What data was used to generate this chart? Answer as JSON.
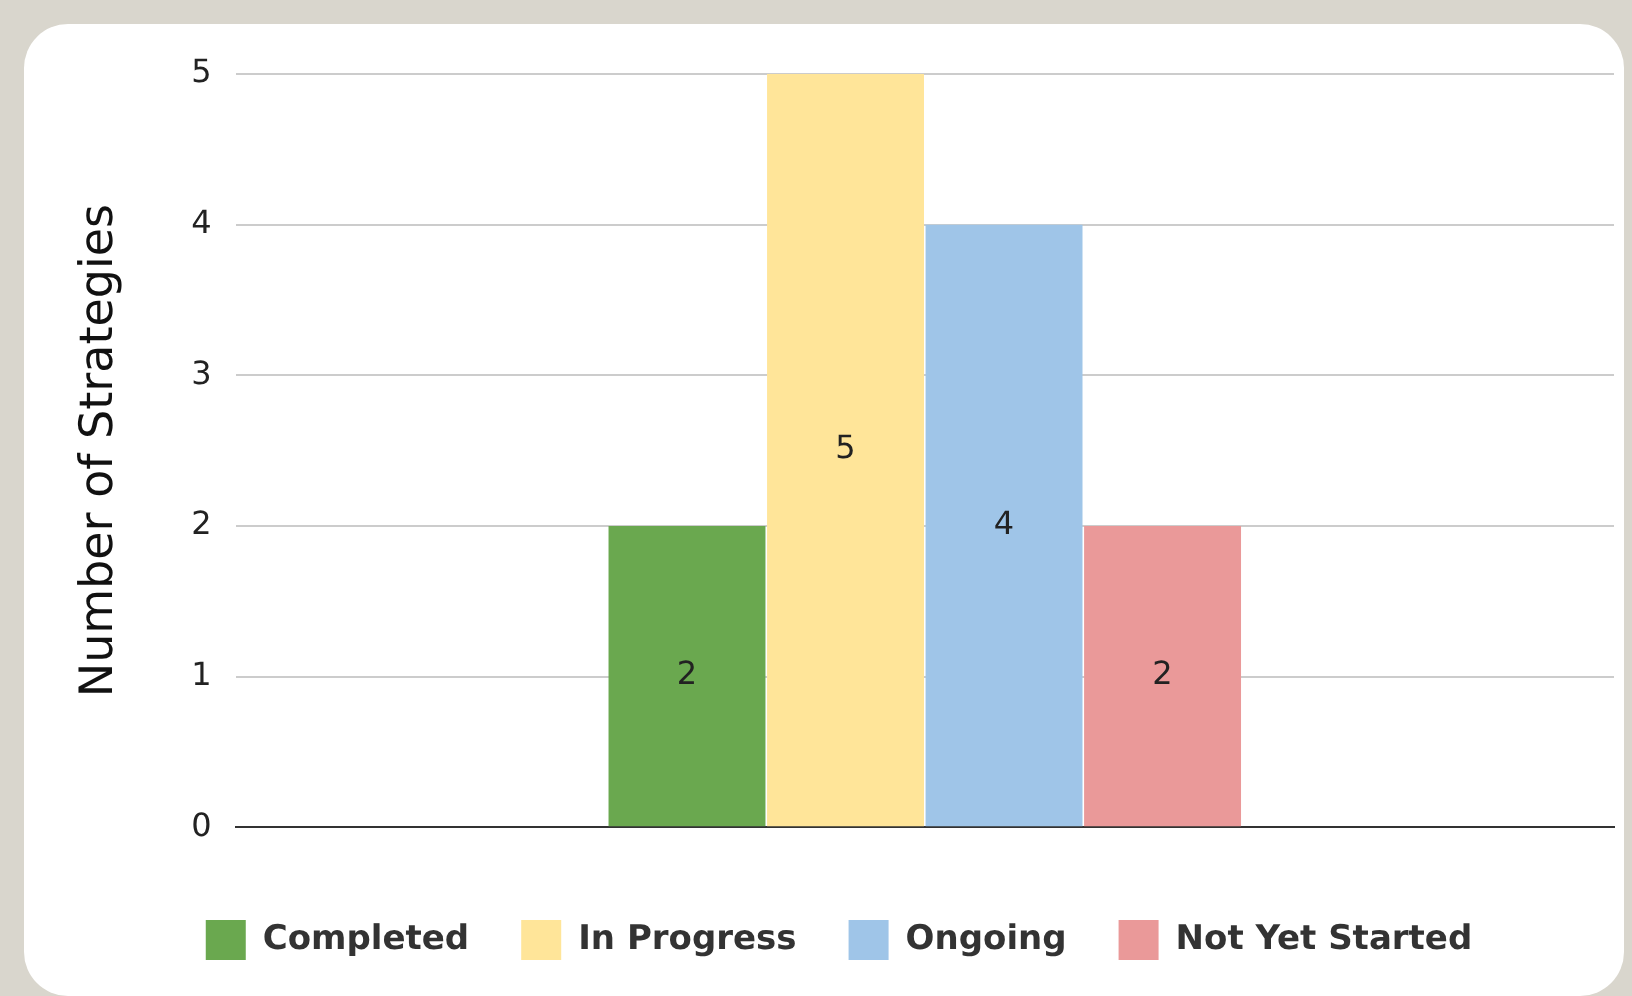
{
  "chart_data": {
    "type": "bar",
    "ylabel": "Number of Strategies",
    "categories": [
      null
    ],
    "series": [
      {
        "name": "Completed",
        "color": "#6aa84f",
        "values": [
          2
        ]
      },
      {
        "name": "In Progress",
        "color": "#ffe599",
        "values": [
          5
        ]
      },
      {
        "name": "Ongoing",
        "color": "#9fc5e8",
        "values": [
          4
        ]
      },
      {
        "name": "Not Yet Started",
        "color": "#ea9999",
        "values": [
          2
        ]
      }
    ],
    "ylim": [
      0,
      5
    ],
    "yticks": [
      0,
      1,
      2,
      3,
      4,
      5
    ],
    "grid": "y",
    "legend": "bottom",
    "data_labels": true
  }
}
